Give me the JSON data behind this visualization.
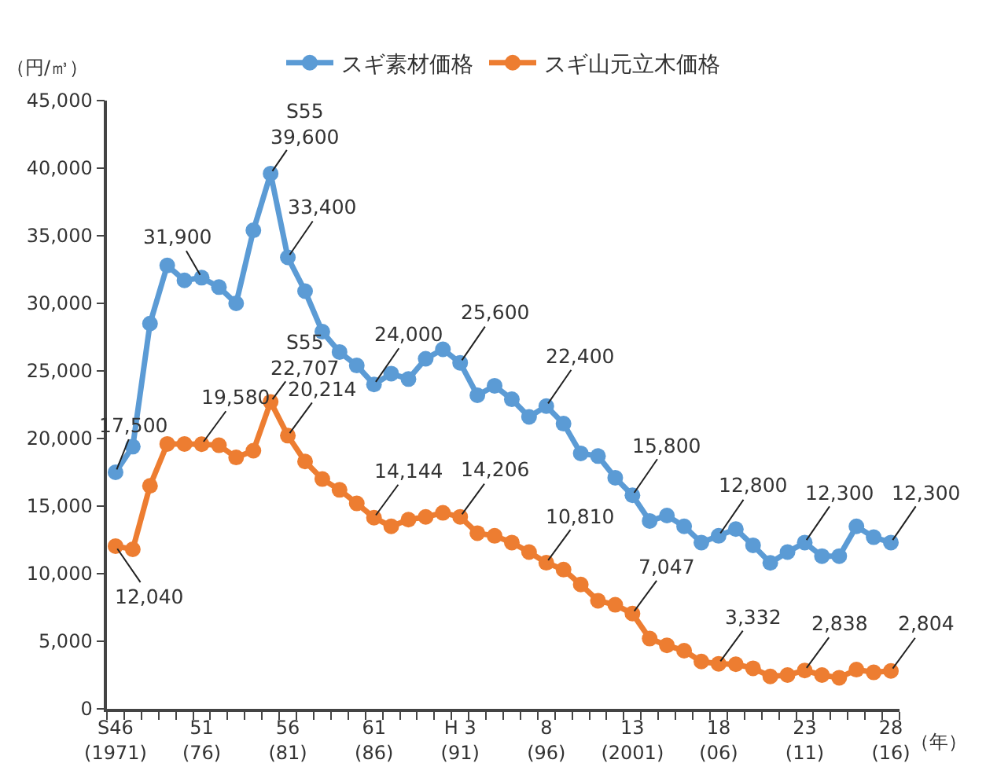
{
  "chart_data": {
    "type": "line",
    "ylabel": "（円/㎥）",
    "xlabel": "（年）",
    "categories": [
      "S46\n(1971)",
      null,
      null,
      null,
      null,
      "51\n(76)",
      null,
      null,
      null,
      null,
      "56\n(81)",
      null,
      null,
      null,
      null,
      "61\n(86)",
      null,
      null,
      null,
      null,
      "H 3\n(91)",
      null,
      null,
      null,
      null,
      "8\n(96)",
      null,
      null,
      null,
      null,
      "13\n(2001)",
      null,
      null,
      null,
      null,
      "18\n(06)",
      null,
      null,
      null,
      null,
      "23\n(11)",
      null,
      null,
      null,
      null,
      "28\n(16)"
    ],
    "series": [
      {
        "name": "スギ素材価格",
        "color": "#5b9bd5",
        "values": [
          17500,
          19400,
          28500,
          32800,
          31700,
          31900,
          31200,
          30000,
          35400,
          39600,
          33400,
          30900,
          27900,
          26400,
          25400,
          24000,
          24800,
          24400,
          25900,
          26600,
          25600,
          23200,
          23900,
          22900,
          21600,
          22400,
          21100,
          18900,
          18700,
          17100,
          15800,
          13900,
          14300,
          13500,
          12300,
          12800,
          13300,
          12100,
          10800,
          11600,
          12300,
          11300,
          11300,
          13500,
          12700,
          12300
        ],
        "value_labels": [
          "17,500",
          null,
          null,
          null,
          null,
          "31,900",
          null,
          null,
          null,
          "S55\n39,600",
          "33,400",
          null,
          null,
          null,
          null,
          "24,000",
          null,
          null,
          null,
          null,
          "25,600",
          null,
          null,
          null,
          null,
          "22,400",
          null,
          null,
          null,
          null,
          "15,800",
          null,
          null,
          null,
          null,
          "12,800",
          null,
          null,
          null,
          null,
          "12,300",
          null,
          null,
          null,
          null,
          "12,300"
        ]
      },
      {
        "name": "スギ山元立木価格",
        "color": "#ed7d31",
        "values": [
          12040,
          11800,
          16500,
          19600,
          19600,
          19580,
          19500,
          18600,
          19100,
          22707,
          20214,
          18300,
          17000,
          16200,
          15200,
          14144,
          13500,
          14000,
          14200,
          14500,
          14206,
          13000,
          12800,
          12300,
          11600,
          10810,
          10300,
          9200,
          8000,
          7700,
          7047,
          5200,
          4700,
          4300,
          3500,
          3332,
          3300,
          3000,
          2400,
          2500,
          2838,
          2500,
          2300,
          2900,
          2700,
          2804
        ],
        "value_labels": [
          "12,040",
          null,
          null,
          null,
          null,
          "19,580",
          null,
          null,
          null,
          "S55\n22,707",
          "20,214",
          null,
          null,
          null,
          null,
          "14,144",
          null,
          null,
          null,
          null,
          "14,206",
          null,
          null,
          null,
          null,
          "10,810",
          null,
          null,
          null,
          null,
          "7,047",
          null,
          null,
          null,
          null,
          "3,332",
          null,
          null,
          null,
          null,
          "2,838",
          null,
          null,
          null,
          null,
          "2,804"
        ]
      }
    ],
    "ylim": [
      0,
      45000
    ],
    "yticks": [
      {
        "value": 0,
        "label": "0"
      },
      {
        "value": 5000,
        "label": "5,000"
      },
      {
        "value": 10000,
        "label": "10,000"
      },
      {
        "value": 15000,
        "label": "15,000"
      },
      {
        "value": 20000,
        "label": "20,000"
      },
      {
        "value": 25000,
        "label": "25,000"
      },
      {
        "value": 30000,
        "label": "30,000"
      },
      {
        "value": 35000,
        "label": "35,000"
      },
      {
        "value": 40000,
        "label": "40,000"
      },
      {
        "value": 45000,
        "label": "45,000"
      }
    ],
    "grid": false,
    "legend": "top",
    "marker": "circle",
    "line_style": "solid"
  }
}
